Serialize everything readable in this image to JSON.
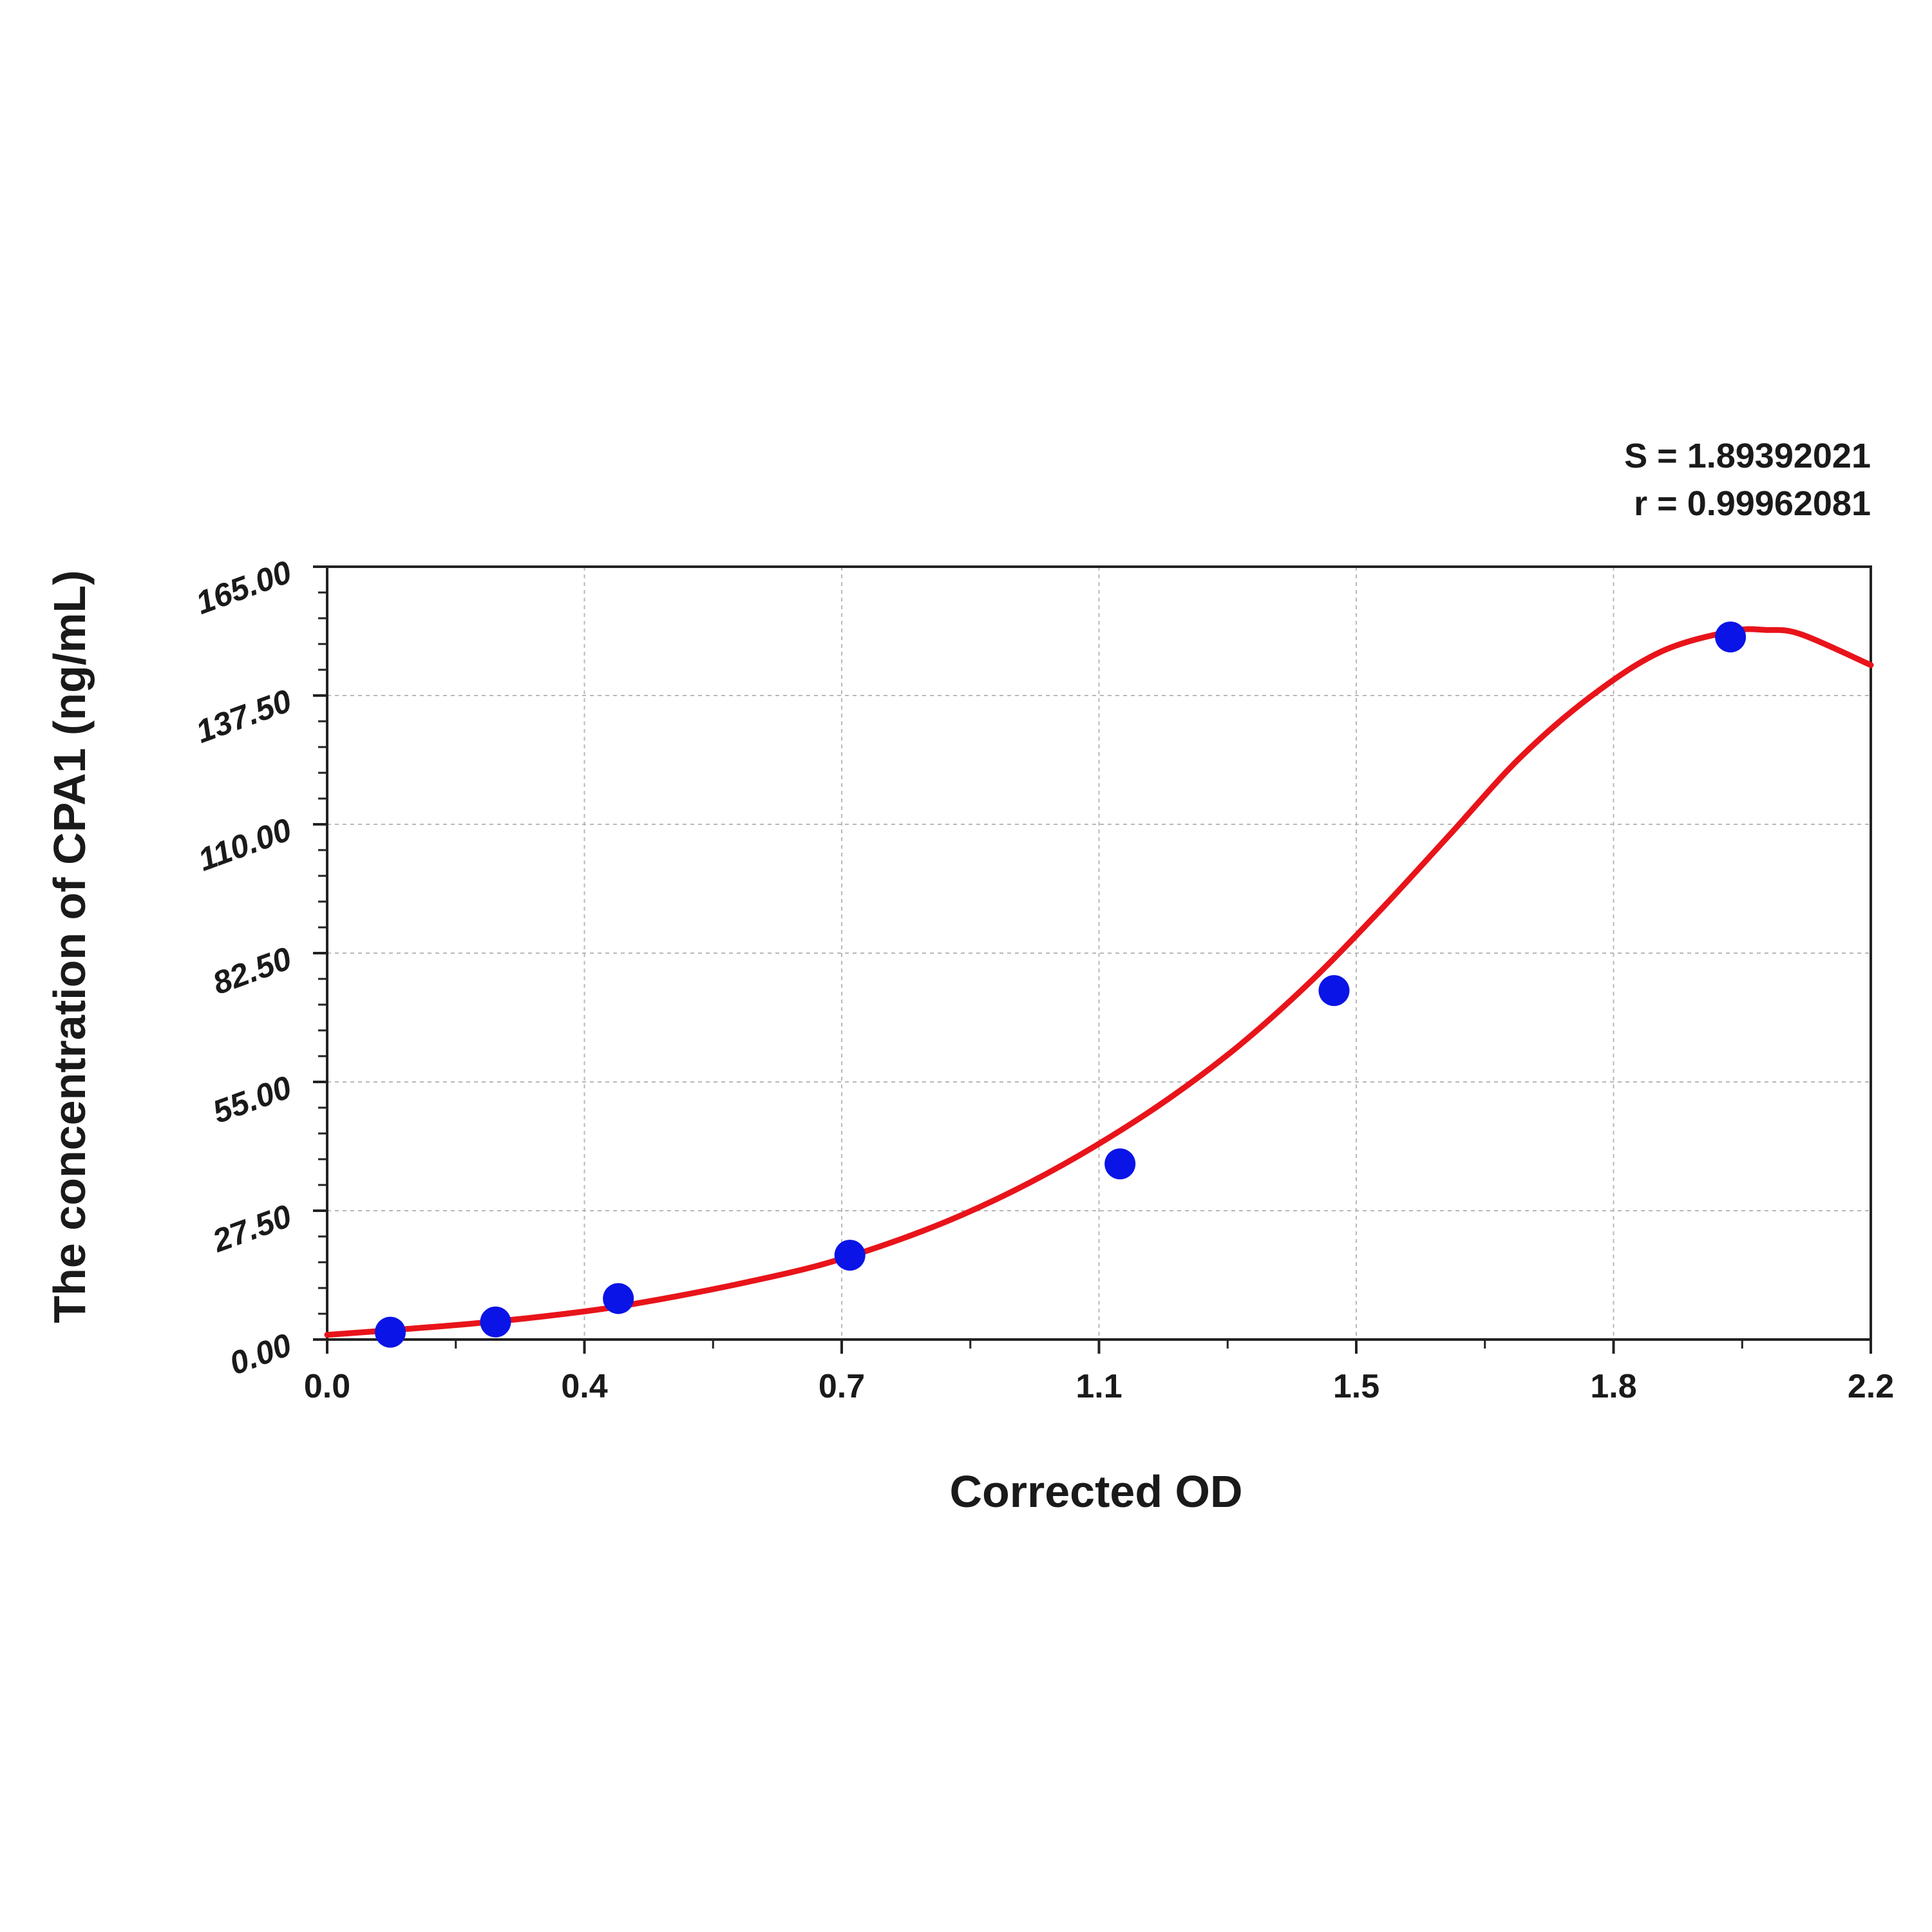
{
  "chart_data": {
    "type": "scatter",
    "xlabel": "Corrected OD",
    "ylabel": "The concentration of CPA1 (ng/mL)",
    "xlim": [
      0.0,
      2.2
    ],
    "ylim": [
      0.0,
      165.0
    ],
    "x_ticks": [
      "0.0",
      "0.4",
      "0.7",
      "1.1",
      "1.5",
      "1.8",
      "2.2"
    ],
    "y_ticks": [
      "0.00",
      "27.50",
      "55.00",
      "82.50",
      "110.00",
      "137.50",
      "165.00"
    ],
    "grid": true,
    "stats": {
      "s_label": "S = 1.89392021",
      "r_label": "r = 0.99962081"
    },
    "series": [
      {
        "kind": "points",
        "color": "#0a14e6",
        "x": [
          0.09,
          0.24,
          0.415,
          0.745,
          1.13,
          1.435,
          2.0
        ],
        "y": [
          1.56,
          3.75,
          8.75,
          18.0,
          37.5,
          74.5,
          150.0
        ]
      },
      {
        "kind": "fit-curve",
        "color": "#e8141a",
        "x": [
          0.0,
          0.1,
          0.2,
          0.3,
          0.4,
          0.5,
          0.6,
          0.7,
          0.8,
          0.9,
          1.0,
          1.1,
          1.2,
          1.3,
          1.4,
          1.5,
          1.6,
          1.7,
          1.8,
          1.9,
          2.0,
          2.05,
          2.1,
          2.2
        ],
        "y": [
          1.0,
          2.1,
          3.3,
          4.8,
          6.7,
          9.3,
          12.3,
          15.8,
          20.5,
          26.3,
          33.4,
          41.8,
          51.5,
          62.8,
          76.2,
          91.5,
          107.8,
          124.2,
          137.2,
          146.8,
          151.2,
          151.5,
          150.6,
          144.0
        ]
      }
    ]
  }
}
